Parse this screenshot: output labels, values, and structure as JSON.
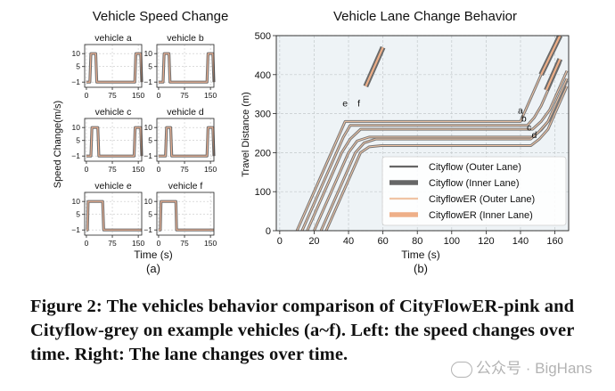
{
  "chart_data": [
    {
      "type": "line",
      "title": "Vehicle Speed Change",
      "ylabel": "Speed Change(m/s)",
      "xlabel": "Time (s)",
      "panel_label": "(a)",
      "xticks": [
        0,
        75,
        150
      ],
      "yticks": [
        10,
        5,
        -1
      ],
      "xlim": [
        -5,
        160
      ],
      "ylim": [
        -3,
        13.5
      ],
      "grid": true,
      "series": [
        {
          "name": "vehicle a",
          "x": [
            0,
            10,
            13,
            27,
            30,
            140,
            143,
            157,
            160
          ],
          "y": [
            -1,
            -1,
            10,
            10,
            -1,
            -1,
            10,
            10,
            -1
          ]
        },
        {
          "name": "vehicle b",
          "x": [
            0,
            13,
            16,
            30,
            33,
            140,
            143,
            157,
            160
          ],
          "y": [
            -1,
            -1,
            10,
            10,
            -1,
            -1,
            10,
            10,
            -1
          ]
        },
        {
          "name": "vehicle c",
          "x": [
            0,
            13,
            16,
            33,
            36,
            138,
            141,
            157,
            160
          ],
          "y": [
            -1,
            -1,
            10,
            10,
            -1,
            -1,
            10,
            10,
            -1
          ]
        },
        {
          "name": "vehicle d",
          "x": [
            0,
            20,
            23,
            35,
            38,
            140,
            143,
            157,
            160
          ],
          "y": [
            -1,
            -1,
            10,
            10,
            -1,
            -1,
            10,
            10,
            -1
          ]
        },
        {
          "name": "vehicle e",
          "x": [
            0,
            3,
            5,
            47,
            50,
            160
          ],
          "y": [
            -1,
            -1,
            10,
            10,
            -1,
            -1
          ]
        },
        {
          "name": "vehicle f",
          "x": [
            0,
            5,
            7,
            50,
            52,
            160
          ],
          "y": [
            -1,
            -1,
            10,
            10,
            -1,
            -1
          ]
        }
      ]
    },
    {
      "type": "line",
      "title": "Vehicle Lane Change Behavior",
      "xlabel": "Time (s)",
      "ylabel": "Travel Distance (m)",
      "panel_label": "(b)",
      "xlim": [
        -2,
        168
      ],
      "ylim": [
        0,
        500
      ],
      "xticks": [
        0,
        20,
        40,
        60,
        80,
        100,
        120,
        140,
        160
      ],
      "yticks": [
        0,
        100,
        200,
        300,
        400,
        500
      ],
      "grid": true,
      "legend_position": "lower-right",
      "legend": [
        {
          "label": "Cityflow (Outer Lane)",
          "color": "#666666",
          "style": "thin"
        },
        {
          "label": "Cityflow (Inner Lane)",
          "color": "#666666",
          "style": "thick"
        },
        {
          "label": "CityflowER (Outer Lane)",
          "color": "#f0c4a4",
          "style": "thin"
        },
        {
          "label": "CityflowER (Inner Lane)",
          "color": "#eeaf88",
          "style": "thick"
        }
      ],
      "series": [
        {
          "name": "a",
          "lane_change_at": [
            40,
            140
          ],
          "x": [
            10,
            30,
            34,
            38,
            140,
            144,
            148,
            163
          ],
          "y": [
            0,
            200,
            240,
            280,
            280,
            320,
            360,
            510
          ]
        },
        {
          "name": "b",
          "lane_change_at": [
            150
          ],
          "x": [
            13,
            33,
            37,
            41,
            144,
            148,
            152,
            163
          ],
          "y": [
            0,
            200,
            240,
            270,
            270,
            290,
            320,
            430
          ]
        },
        {
          "name": "c",
          "lane_change_at": [],
          "x": [
            16,
            36,
            41,
            47,
            147,
            152,
            157,
            167
          ],
          "y": [
            0,
            200,
            235,
            260,
            260,
            280,
            310,
            410
          ]
        },
        {
          "name": "d",
          "lane_change_at": [],
          "x": [
            20,
            40,
            45,
            52,
            147,
            152,
            157,
            167
          ],
          "y": [
            0,
            200,
            230,
            240,
            240,
            258,
            285,
            385
          ]
        },
        {
          "name": "e",
          "lane_change_at": [],
          "x": [
            24,
            44,
            49,
            56,
            146,
            151,
            156,
            167
          ],
          "y": [
            0,
            200,
            225,
            235,
            235,
            255,
            280,
            390
          ]
        },
        {
          "name": "f",
          "lane_change_at": [],
          "x": [
            27,
            47,
            52,
            59,
            146,
            151,
            156,
            167
          ],
          "y": [
            0,
            200,
            215,
            218,
            218,
            235,
            260,
            370
          ]
        }
      ],
      "inner_lane_segments": [
        {
          "series": "a",
          "x": [
            50,
            60
          ],
          "y": [
            370,
            470
          ]
        },
        {
          "series": "a",
          "x": [
            152,
            163
          ],
          "y": [
            400,
            500
          ]
        },
        {
          "series": "b",
          "x": [
            155,
            163
          ],
          "y": [
            360,
            440
          ]
        }
      ],
      "annotations": [
        {
          "text": "a",
          "x": 140,
          "y": 300
        },
        {
          "text": "b",
          "x": 142,
          "y": 280
        },
        {
          "text": "c",
          "x": 145,
          "y": 257
        },
        {
          "text": "d",
          "x": 148,
          "y": 237
        },
        {
          "text": "e",
          "x": 38,
          "y": 318
        },
        {
          "text": "f",
          "x": 46,
          "y": 318
        }
      ]
    }
  ],
  "caption": "Figure 2: The vehicles behavior comparison of CityFlowER-pink and Cityflow-grey on example vehicles (a~f). Left: the speed changes over time. Right: The lane changes over time.",
  "watermark": "公众号 · BigHans"
}
